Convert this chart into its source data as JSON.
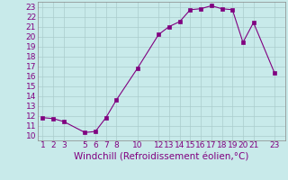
{
  "x": [
    1,
    2,
    3,
    5,
    6,
    7,
    8,
    10,
    12,
    13,
    14,
    15,
    16,
    17,
    18,
    19,
    20,
    21,
    23
  ],
  "y": [
    11.8,
    11.7,
    11.4,
    10.3,
    10.4,
    11.8,
    13.6,
    16.8,
    20.2,
    21.0,
    21.5,
    22.7,
    22.8,
    23.1,
    22.8,
    22.7,
    19.4,
    21.4,
    16.3
  ],
  "line_color": "#800080",
  "marker": "s",
  "marker_size": 2.5,
  "bg_color": "#c8eaea",
  "grid_color": "#aacccc",
  "xlabel": "Windchill (Refroidissement éolien,°C)",
  "xlabel_color": "#800080",
  "xlabel_fontsize": 7.5,
  "tick_color": "#800080",
  "tick_fontsize": 6.5,
  "xlim": [
    0.5,
    24.0
  ],
  "ylim": [
    9.5,
    23.5
  ],
  "xticks": [
    1,
    2,
    3,
    5,
    6,
    7,
    8,
    10,
    12,
    13,
    14,
    15,
    16,
    17,
    18,
    19,
    20,
    21,
    23
  ],
  "yticks": [
    10,
    11,
    12,
    13,
    14,
    15,
    16,
    17,
    18,
    19,
    20,
    21,
    22,
    23
  ]
}
